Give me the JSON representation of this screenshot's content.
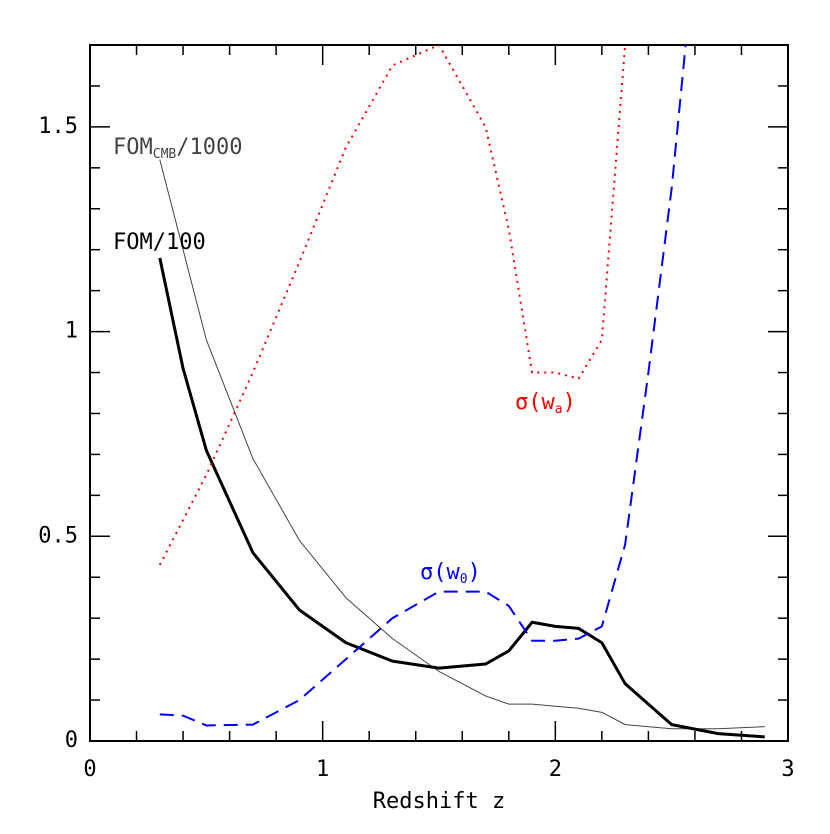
{
  "chart_data": {
    "type": "line",
    "xlabel": "Redshift z",
    "xlim": [
      0,
      3
    ],
    "ylim": [
      0,
      1.7
    ],
    "xticks": [
      0,
      1,
      2,
      3
    ],
    "yticks": [
      0,
      0.5,
      1,
      1.5
    ],
    "xminor": [
      0.2,
      0.4,
      0.6,
      0.8,
      1.2,
      1.4,
      1.6,
      1.8,
      2.2,
      2.4,
      2.6,
      2.8
    ],
    "yminor": [
      0.1,
      0.2,
      0.3,
      0.4,
      0.6,
      0.7,
      0.8,
      0.9,
      1.1,
      1.2,
      1.3,
      1.4,
      1.6
    ],
    "series": [
      {
        "label": [
          "FOM",
          "CMB",
          "/1000"
        ],
        "color": "#444444",
        "style": "thin",
        "x": [
          0.3,
          0.4,
          0.5,
          0.7,
          0.9,
          1.1,
          1.3,
          1.5,
          1.7,
          1.8,
          1.9,
          2.0,
          2.1,
          2.2,
          2.3,
          2.5,
          2.7,
          2.9
        ],
        "values": [
          1.42,
          1.2,
          0.98,
          0.69,
          0.49,
          0.35,
          0.25,
          0.17,
          0.11,
          0.09,
          0.09,
          0.085,
          0.08,
          0.07,
          0.04,
          0.03,
          0.03,
          0.035
        ]
      },
      {
        "label": [
          "FOM/100"
        ],
        "color": "#000000",
        "style": "thick",
        "x": [
          0.3,
          0.4,
          0.5,
          0.7,
          0.9,
          1.1,
          1.3,
          1.5,
          1.7,
          1.8,
          1.9,
          2.0,
          2.1,
          2.2,
          2.3,
          2.5,
          2.7,
          2.9
        ],
        "values": [
          1.18,
          0.91,
          0.71,
          0.46,
          0.32,
          0.24,
          0.195,
          0.178,
          0.188,
          0.22,
          0.29,
          0.28,
          0.275,
          0.24,
          0.14,
          0.04,
          0.018,
          0.01
        ]
      },
      {
        "label": [
          "σ(w",
          "a",
          ")"
        ],
        "color": "#ff0000",
        "style": "dotted",
        "x": [
          0.3,
          0.5,
          0.7,
          0.9,
          1.1,
          1.3,
          1.5,
          1.7,
          1.8,
          1.9,
          2.0,
          2.1,
          2.2,
          2.3
        ],
        "values": [
          0.43,
          0.65,
          0.9,
          1.17,
          1.45,
          1.65,
          1.7,
          1.5,
          1.25,
          0.9,
          0.9,
          0.885,
          0.98,
          1.7
        ]
      },
      {
        "label": [
          "σ(w",
          "0",
          ")"
        ],
        "color": "#0000ff",
        "style": "dashed",
        "x": [
          0.3,
          0.4,
          0.5,
          0.7,
          0.9,
          1.1,
          1.3,
          1.5,
          1.7,
          1.8,
          1.9,
          2.0,
          2.1,
          2.2,
          2.3,
          2.4,
          2.5,
          2.56
        ],
        "values": [
          0.065,
          0.062,
          0.038,
          0.04,
          0.1,
          0.2,
          0.3,
          0.365,
          0.365,
          0.33,
          0.245,
          0.245,
          0.25,
          0.28,
          0.48,
          0.9,
          1.35,
          1.7
        ]
      }
    ]
  }
}
